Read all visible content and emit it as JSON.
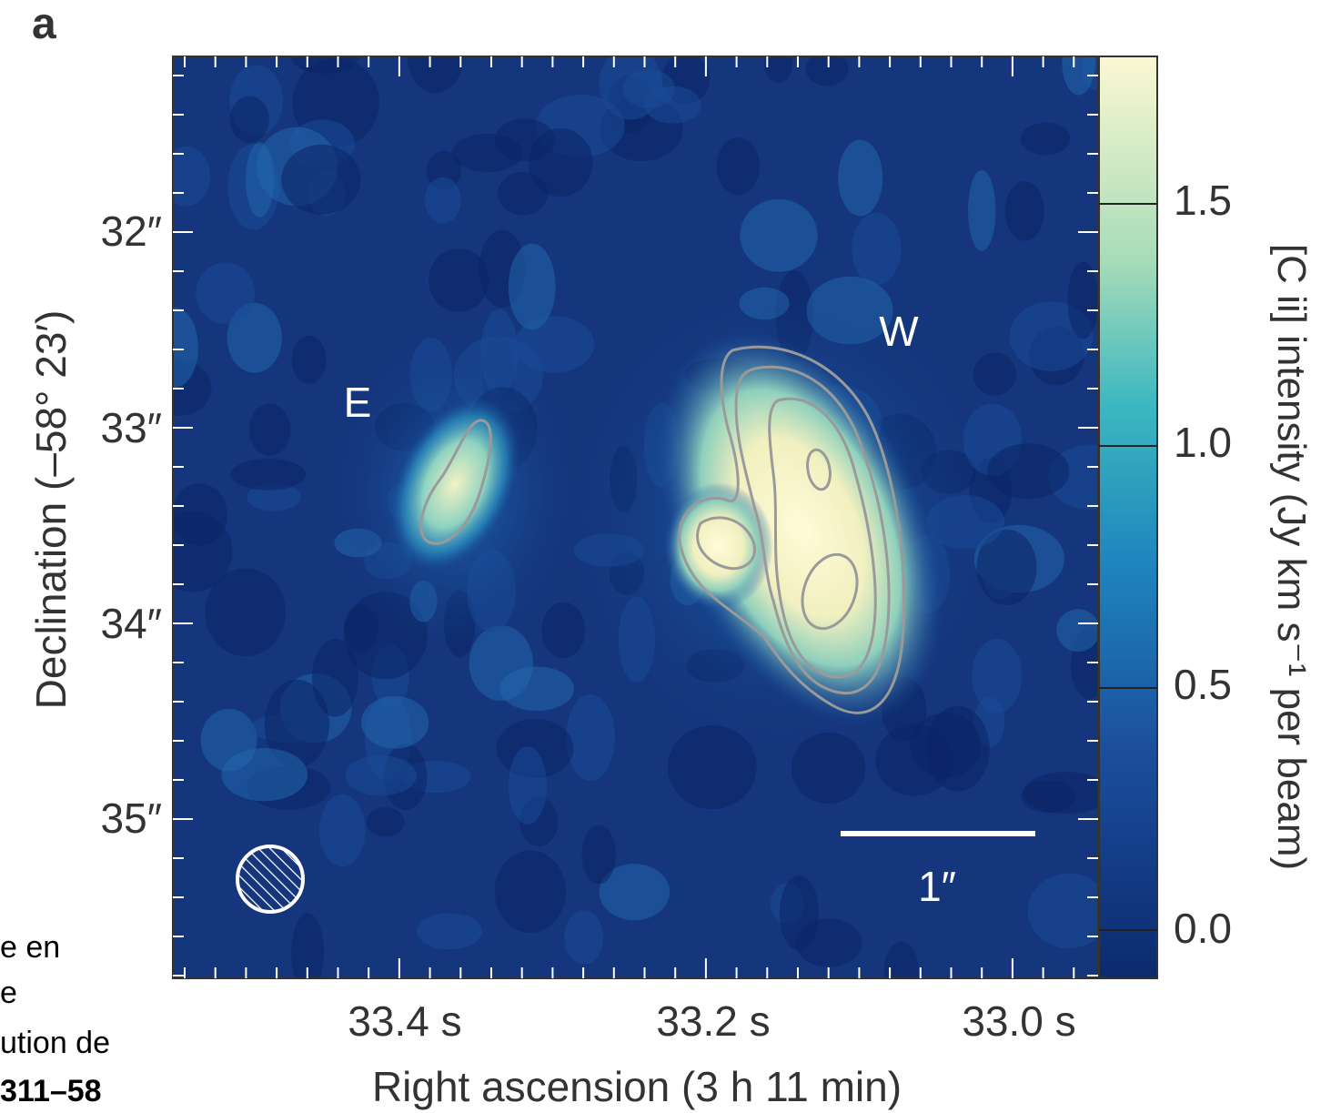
{
  "panel_label": "a",
  "caption_fragments": [
    "e en",
    "e",
    "ution de",
    "311–58"
  ],
  "chart_data": {
    "type": "heatmap",
    "title": "",
    "xlabel": "Right ascension (3 h 11 min)",
    "ylabel": "Declination (–58° 23′)",
    "x_ticks": [
      "33.4 s",
      "33.2 s",
      "33.0 s"
    ],
    "y_ticks": [
      "32″",
      "33″",
      "34″",
      "35″"
    ],
    "xlim": [
      33.52,
      32.93
    ],
    "ylim": [
      35.6,
      31.1
    ],
    "colorbar": {
      "label": "[C ii] intensity (Jy km s⁻¹ per beam)",
      "ticks": [
        "0.0",
        "0.5",
        "1.0",
        "1.5"
      ],
      "range": [
        -0.05,
        1.8
      ]
    },
    "annotations": [
      {
        "text": "E",
        "ra": 33.42,
        "dec": 32.8
      },
      {
        "text": "W",
        "ra": 33.12,
        "dec": 32.45
      }
    ],
    "scale_bar_label": "1″",
    "beam_marker": "hatched-ellipse"
  },
  "colors": {
    "background_low": "#0c2a6e",
    "mid": "#2aa6c4",
    "high": "#fdfad4",
    "contour": "#9a9a9a"
  }
}
